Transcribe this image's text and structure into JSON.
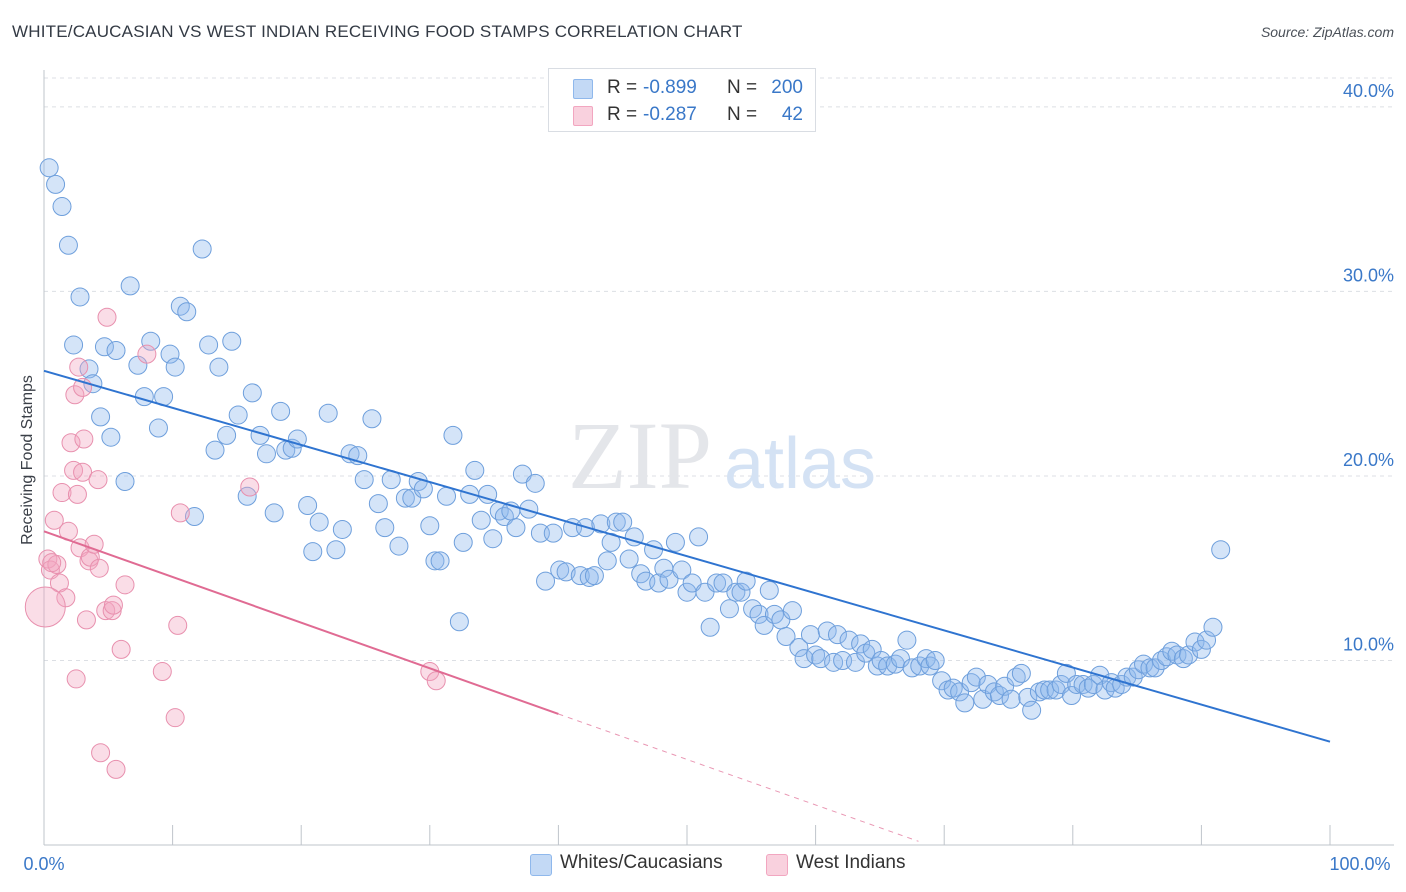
{
  "title": "WHITE/CAUCASIAN VS WEST INDIAN RECEIVING FOOD STAMPS CORRELATION CHART",
  "source": "Source: ZipAtlas.com",
  "watermark": {
    "zip": "ZIP",
    "atlas": "atlas"
  },
  "stats": [
    {
      "r_label": "R =",
      "r_value": "-0.899",
      "n_label": "N =",
      "n_value": "200",
      "color": "#8fb8ec"
    },
    {
      "r_label": "R =",
      "r_value": "-0.287",
      "n_label": "N =",
      "n_value": "42",
      "color": "#f2a6c0"
    }
  ],
  "legend": [
    {
      "label": "Whites/Caucasians",
      "color": "#8fb8ec"
    },
    {
      "label": "West Indians",
      "color": "#f2a6c0"
    }
  ],
  "chart_data": {
    "type": "scatter",
    "title": "WHITE/CAUCASIAN VS WEST INDIAN RECEIVING FOOD STAMPS CORRELATION CHART",
    "xlabel": "",
    "ylabel": "Receiving Food Stamps",
    "xlim": [
      0,
      100
    ],
    "ylim": [
      0,
      42
    ],
    "x_tick_labels": [
      "0.0%",
      "100.0%"
    ],
    "y_ticks": [
      10,
      20,
      30,
      40
    ],
    "y_tick_labels": [
      "10.0%",
      "20.0%",
      "30.0%",
      "40.0%"
    ],
    "grid": true,
    "series": [
      {
        "name": "Whites/Caucasians",
        "color": "#8fb8ec",
        "line_color": "#2f74d0",
        "trend": {
          "x0": 0,
          "y0": 25.7,
          "x1": 100,
          "y1": 5.6
        },
        "points": [
          [
            0.4,
            36.7
          ],
          [
            0.9,
            35.8
          ],
          [
            1.4,
            34.6
          ],
          [
            1.9,
            32.5
          ],
          [
            2.3,
            27.1
          ],
          [
            2.8,
            29.7
          ],
          [
            3.5,
            25.8
          ],
          [
            3.8,
            25
          ],
          [
            4.4,
            23.2
          ],
          [
            4.7,
            27
          ],
          [
            5.2,
            22.1
          ],
          [
            5.6,
            26.8
          ],
          [
            6.3,
            19.7
          ],
          [
            6.7,
            30.3
          ],
          [
            7.3,
            26
          ],
          [
            7.8,
            24.3
          ],
          [
            8.3,
            27.3
          ],
          [
            8.9,
            22.6
          ],
          [
            9.3,
            24.3
          ],
          [
            9.8,
            26.6
          ],
          [
            10.2,
            25.9
          ],
          [
            10.6,
            29.2
          ],
          [
            11.1,
            28.9
          ],
          [
            11.7,
            17.8
          ],
          [
            12.3,
            32.3
          ],
          [
            12.8,
            27.1
          ],
          [
            13.3,
            21.4
          ],
          [
            13.6,
            25.9
          ],
          [
            14.2,
            22.2
          ],
          [
            14.6,
            27.3
          ],
          [
            15.1,
            23.3
          ],
          [
            15.8,
            18.9
          ],
          [
            16.2,
            24.5
          ],
          [
            16.8,
            22.2
          ],
          [
            17.3,
            21.2
          ],
          [
            17.9,
            18
          ],
          [
            18.4,
            23.5
          ],
          [
            18.8,
            21.4
          ],
          [
            19.3,
            21.5
          ],
          [
            19.7,
            22
          ],
          [
            20.5,
            18.4
          ],
          [
            20.9,
            15.9
          ],
          [
            21.4,
            17.5
          ],
          [
            22.1,
            23.4
          ],
          [
            22.7,
            16
          ],
          [
            23.2,
            17.1
          ],
          [
            23.8,
            21.2
          ],
          [
            24.4,
            21.1
          ],
          [
            24.9,
            19.8
          ],
          [
            25.5,
            23.1
          ],
          [
            26,
            18.5
          ],
          [
            26.5,
            17.2
          ],
          [
            27,
            19.8
          ],
          [
            27.6,
            16.2
          ],
          [
            28.1,
            18.8
          ],
          [
            28.6,
            18.8
          ],
          [
            29.1,
            19.7
          ],
          [
            29.5,
            19.3
          ],
          [
            30,
            17.3
          ],
          [
            30.4,
            15.4
          ],
          [
            30.8,
            15.4
          ],
          [
            31.3,
            18.9
          ],
          [
            31.8,
            22.2
          ],
          [
            32.3,
            12.1
          ],
          [
            32.6,
            16.4
          ],
          [
            33.1,
            19
          ],
          [
            33.5,
            20.3
          ],
          [
            34,
            17.6
          ],
          [
            34.5,
            19
          ],
          [
            34.9,
            16.6
          ],
          [
            35.4,
            18.1
          ],
          [
            35.8,
            17.8
          ],
          [
            36.3,
            18.1
          ],
          [
            36.7,
            17.2
          ],
          [
            37.2,
            20.1
          ],
          [
            37.7,
            18.2
          ],
          [
            38.2,
            19.6
          ],
          [
            38.6,
            16.9
          ],
          [
            39,
            14.3
          ],
          [
            39.6,
            16.9
          ],
          [
            40.1,
            14.9
          ],
          [
            40.6,
            14.8
          ],
          [
            41.1,
            17.2
          ],
          [
            41.7,
            14.6
          ],
          [
            42.1,
            17.2
          ],
          [
            42.4,
            14.5
          ],
          [
            42.8,
            14.6
          ],
          [
            43.3,
            17.4
          ],
          [
            43.8,
            15.4
          ],
          [
            44.1,
            16.4
          ],
          [
            44.5,
            17.5
          ],
          [
            45,
            17.5
          ],
          [
            45.5,
            15.5
          ],
          [
            45.9,
            16.7
          ],
          [
            46.4,
            14.7
          ],
          [
            46.8,
            14.3
          ],
          [
            47.4,
            16
          ],
          [
            47.8,
            14.2
          ],
          [
            48.2,
            15
          ],
          [
            48.6,
            14.4
          ],
          [
            49.1,
            16.4
          ],
          [
            49.6,
            14.9
          ],
          [
            50,
            13.7
          ],
          [
            50.4,
            14.2
          ],
          [
            50.9,
            16.7
          ],
          [
            51.4,
            13.7
          ],
          [
            51.8,
            11.8
          ],
          [
            52.3,
            14.2
          ],
          [
            52.8,
            14.2
          ],
          [
            53.3,
            12.8
          ],
          [
            53.8,
            13.7
          ],
          [
            54.2,
            13.7
          ],
          [
            54.6,
            14.3
          ],
          [
            55.1,
            12.8
          ],
          [
            55.6,
            12.5
          ],
          [
            56,
            11.9
          ],
          [
            56.4,
            13.8
          ],
          [
            56.8,
            12.5
          ],
          [
            57.3,
            12.2
          ],
          [
            57.7,
            11.3
          ],
          [
            58.2,
            12.7
          ],
          [
            58.7,
            10.7
          ],
          [
            59.1,
            10.1
          ],
          [
            59.6,
            11.4
          ],
          [
            60,
            10.3
          ],
          [
            60.4,
            10.1
          ],
          [
            60.9,
            11.6
          ],
          [
            61.4,
            9.9
          ],
          [
            61.7,
            11.4
          ],
          [
            62.1,
            10
          ],
          [
            62.6,
            11.1
          ],
          [
            63.1,
            9.9
          ],
          [
            63.5,
            10.9
          ],
          [
            63.9,
            10.4
          ],
          [
            64.4,
            10.6
          ],
          [
            64.8,
            9.7
          ],
          [
            65.1,
            10
          ],
          [
            65.6,
            9.7
          ],
          [
            66.2,
            9.8
          ],
          [
            66.6,
            10.1
          ],
          [
            67.1,
            11.1
          ],
          [
            67.5,
            9.6
          ],
          [
            68.1,
            9.7
          ],
          [
            68.6,
            10.1
          ],
          [
            68.9,
            9.7
          ],
          [
            69.3,
            10
          ],
          [
            69.8,
            8.9
          ],
          [
            70.3,
            8.4
          ],
          [
            70.7,
            8.5
          ],
          [
            71.2,
            8.3
          ],
          [
            71.6,
            7.7
          ],
          [
            72.1,
            8.8
          ],
          [
            72.5,
            9.1
          ],
          [
            73,
            7.9
          ],
          [
            73.4,
            8.7
          ],
          [
            73.9,
            8.3
          ],
          [
            74.3,
            8.1
          ],
          [
            74.7,
            8.6
          ],
          [
            75.2,
            7.9
          ],
          [
            75.6,
            9.1
          ],
          [
            76,
            9.3
          ],
          [
            76.5,
            8
          ],
          [
            76.8,
            7.3
          ],
          [
            77.4,
            8.3
          ],
          [
            77.8,
            8.4
          ],
          [
            78.2,
            8.4
          ],
          [
            78.7,
            8.4
          ],
          [
            79.1,
            8.7
          ],
          [
            79.5,
            9.3
          ],
          [
            79.9,
            8.1
          ],
          [
            80.3,
            8.7
          ],
          [
            80.8,
            8.7
          ],
          [
            81.2,
            8.5
          ],
          [
            81.6,
            8.7
          ],
          [
            82.1,
            9.2
          ],
          [
            82.5,
            8.4
          ],
          [
            83,
            8.8
          ],
          [
            83.3,
            8.5
          ],
          [
            83.8,
            8.7
          ],
          [
            84.2,
            9.1
          ],
          [
            84.7,
            9.1
          ],
          [
            85.1,
            9.5
          ],
          [
            85.5,
            9.8
          ],
          [
            86,
            9.6
          ],
          [
            86.4,
            9.6
          ],
          [
            86.9,
            10
          ],
          [
            87.3,
            10.2
          ],
          [
            87.7,
            10.5
          ],
          [
            88.1,
            10.3
          ],
          [
            88.6,
            10.1
          ],
          [
            89,
            10.3
          ],
          [
            89.5,
            11
          ],
          [
            90,
            10.6
          ],
          [
            90.4,
            11.1
          ],
          [
            90.9,
            11.8
          ],
          [
            91.5,
            16
          ]
        ]
      },
      {
        "name": "West Indians",
        "color": "#f2a6c0",
        "line_color": "#e06b93",
        "trend": {
          "x0": 0,
          "y0": 17.0,
          "x1": 40,
          "y1": 7.1
        },
        "trend_dashed_to": {
          "x": 68,
          "y": 0.2
        },
        "points": [
          [
            0.3,
            15.5
          ],
          [
            0.5,
            14.9
          ],
          [
            0.8,
            17.6
          ],
          [
            1,
            15.2
          ],
          [
            1.2,
            14.2
          ],
          [
            1.4,
            19.1
          ],
          [
            1.7,
            13.4
          ],
          [
            1.9,
            17
          ],
          [
            2.1,
            21.8
          ],
          [
            2.3,
            20.3
          ],
          [
            2.5,
            9
          ],
          [
            2.6,
            19
          ],
          [
            2.8,
            16.1
          ],
          [
            3,
            20.2
          ],
          [
            3.1,
            22
          ],
          [
            3.3,
            12.2
          ],
          [
            3.5,
            15.4
          ],
          [
            3.6,
            15.6
          ],
          [
            3.9,
            16.3
          ],
          [
            4.2,
            19.8
          ],
          [
            4.3,
            15
          ],
          [
            4.4,
            5
          ],
          [
            4.8,
            12.7
          ],
          [
            4.9,
            28.6
          ],
          [
            5.3,
            12.7
          ],
          [
            5.4,
            13
          ],
          [
            5.6,
            4.1
          ],
          [
            6,
            10.6
          ],
          [
            6.3,
            14.1
          ],
          [
            8,
            26.6
          ],
          [
            9.2,
            9.4
          ],
          [
            10.2,
            6.9
          ],
          [
            10.4,
            11.9
          ],
          [
            10.6,
            18
          ],
          [
            16,
            19.4
          ],
          [
            30,
            9.4
          ],
          [
            30.5,
            8.9
          ],
          [
            2.4,
            24.4
          ],
          [
            2.7,
            25.9
          ],
          [
            3,
            24.8
          ],
          [
            0.6,
            15.3
          ],
          [
            0.1,
            12.9
          ]
        ]
      }
    ]
  }
}
